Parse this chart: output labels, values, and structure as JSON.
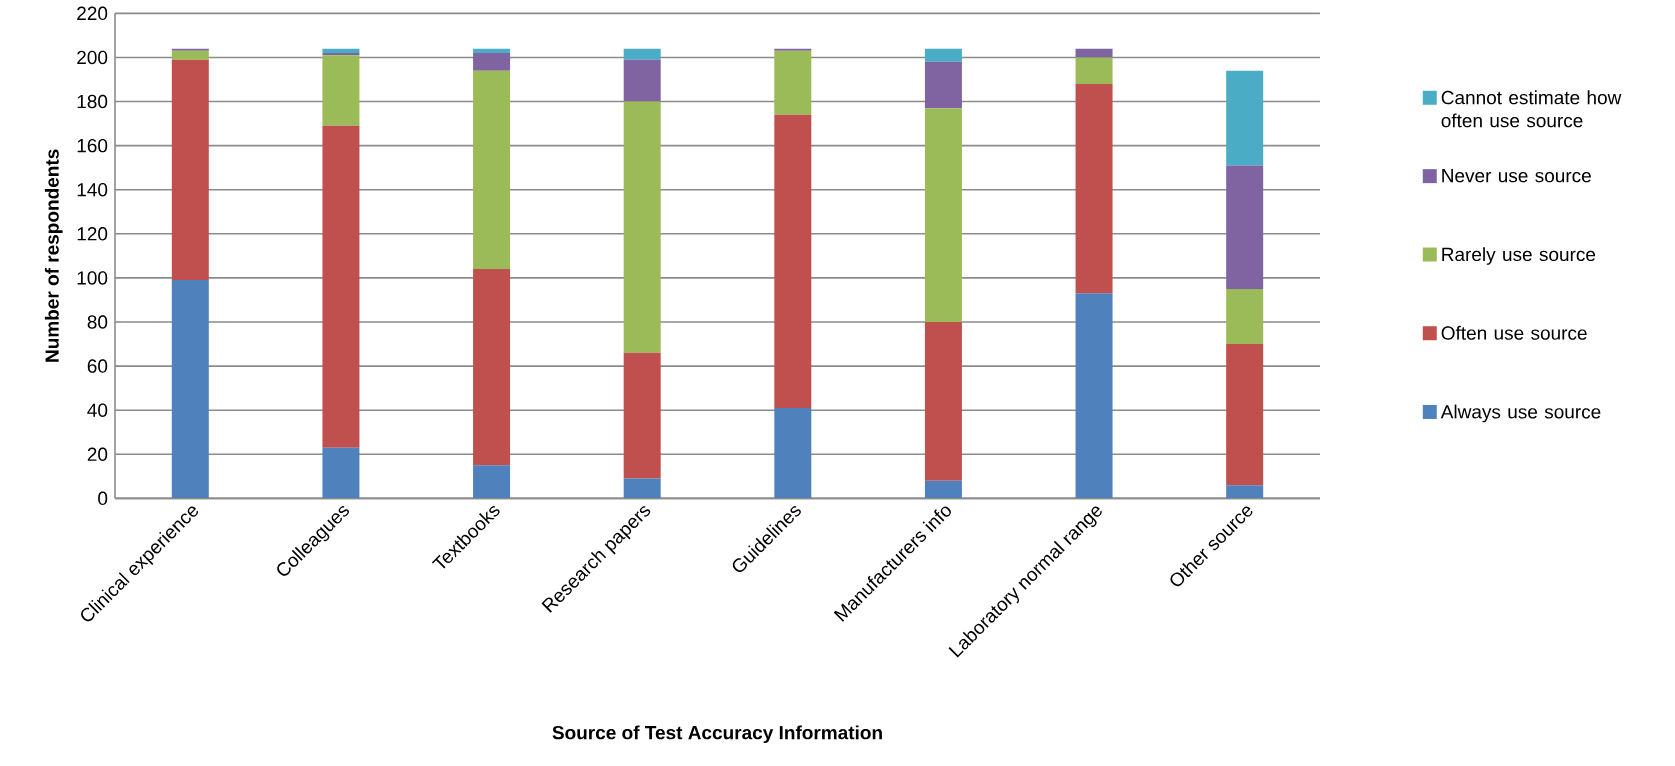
{
  "chart_data": {
    "type": "bar",
    "stacked": true,
    "xlabel": "Source of Test Accuracy  Information",
    "ylabel": "Number of respondents",
    "categories": [
      "Clinical experience",
      "Colleagues",
      "Textbooks",
      "Research papers",
      "Guidelines",
      "Manufacturers info",
      "Laboratory normal range",
      "Other source"
    ],
    "series": [
      {
        "name": "Always use source",
        "color": "#4f81bd",
        "values": [
          99,
          23,
          15,
          9,
          41,
          8,
          93,
          6
        ]
      },
      {
        "name": "Often use source",
        "color": "#c0504d",
        "values": [
          100,
          146,
          89,
          57,
          133,
          72,
          95,
          64
        ]
      },
      {
        "name": "Rarely use source",
        "color": "#9bbb59",
        "values": [
          4,
          32,
          90,
          114,
          29,
          97,
          12,
          25
        ]
      },
      {
        "name": "Never use source",
        "color": "#8064a2",
        "values": [
          1,
          1,
          8,
          19,
          1,
          21,
          4,
          56
        ]
      },
      {
        "name": "Cannot estimate how often use source",
        "color": "#4bacc6",
        "values": [
          0,
          2,
          2,
          5,
          0,
          6,
          0,
          43
        ]
      }
    ],
    "ylim": [
      0,
      220
    ],
    "yticks": [
      0,
      20,
      40,
      60,
      80,
      100,
      120,
      140,
      160,
      180,
      200,
      220
    ],
    "grid": "y",
    "legend": "right"
  }
}
